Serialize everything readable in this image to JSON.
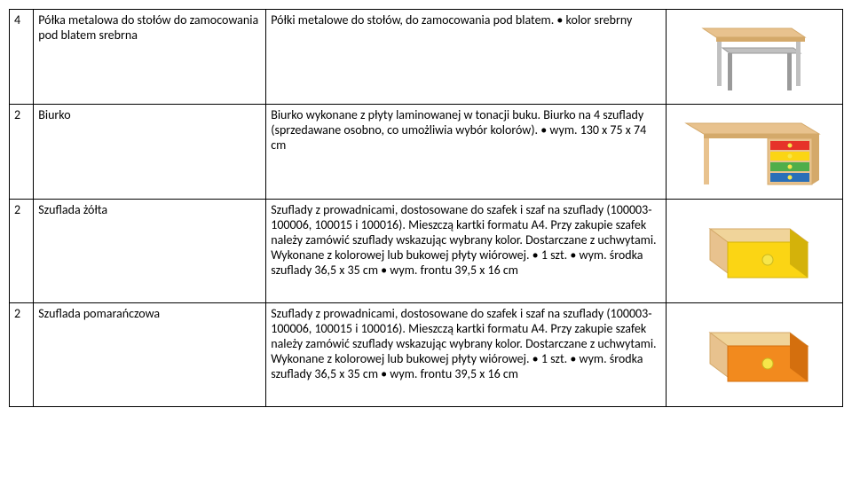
{
  "rows": [
    {
      "qty": "4",
      "name": "Półka metalowa do stołów do zamocowania pod blatem srebrna",
      "desc": "Półki metalowe do stołów, do zamocowania pod blatem. • kolor srebrny",
      "imgType": "desk1"
    },
    {
      "qty": "2",
      "name": "Biurko",
      "desc": "Biurko wykonane z płyty laminowanej w tonacji buku. Biurko na 4 szuflady (sprzedawane osobno, co umożliwia wybór kolorów). • wym. 130 x 75 x 74 cm",
      "imgType": "desk2"
    },
    {
      "qty": "2",
      "name": "Szuflada żółta",
      "desc": "Szuflady z prowadnicami, dostosowane do szafek i szaf na szuflady (100003-100006, 100015 i 100016). Mieszczą kartki formatu A4. Przy zakupie szafek należy zamówić szuflady wskazując wybrany kolor. Dostarczane z uchwytami. Wykonane z kolorowej lub bukowej płyty wiórowej. • 1 szt. • wym. środka szuflady 36,5 x 35 cm • wym. frontu 39,5 x 16 cm",
      "imgType": "drawer-yellow"
    },
    {
      "qty": "2",
      "name": "Szuflada pomarańczowa",
      "desc": "Szuflady z prowadnicami, dostosowane do szafek i szaf na szuflady (100003-100006, 100015 i 100016). Mieszczą kartki formatu A4. Przy zakupie szafek należy zamówić szuflady wskazując wybrany kolor. Dostarczane z uchwytami. Wykonane z kolorowej lub bukowej płyty wiórowej. • 1 szt. • wym. środka szuflady 36,5 x 35 cm • wym. frontu 39,5 x 16 cm",
      "imgType": "drawer-orange"
    }
  ],
  "colors": {
    "wood": "#e8c28e",
    "woodDark": "#d4a96a",
    "silver": "#c0c0c0",
    "silverDark": "#9a9a9a",
    "red": "#e63329",
    "yellow": "#fbd514",
    "green": "#4fae4a",
    "blue": "#2a6fb8",
    "orange": "#f28a1e",
    "orangeDark": "#d46f0e",
    "knob": "#f7e64a",
    "drawerInside": "#f0d49a"
  }
}
